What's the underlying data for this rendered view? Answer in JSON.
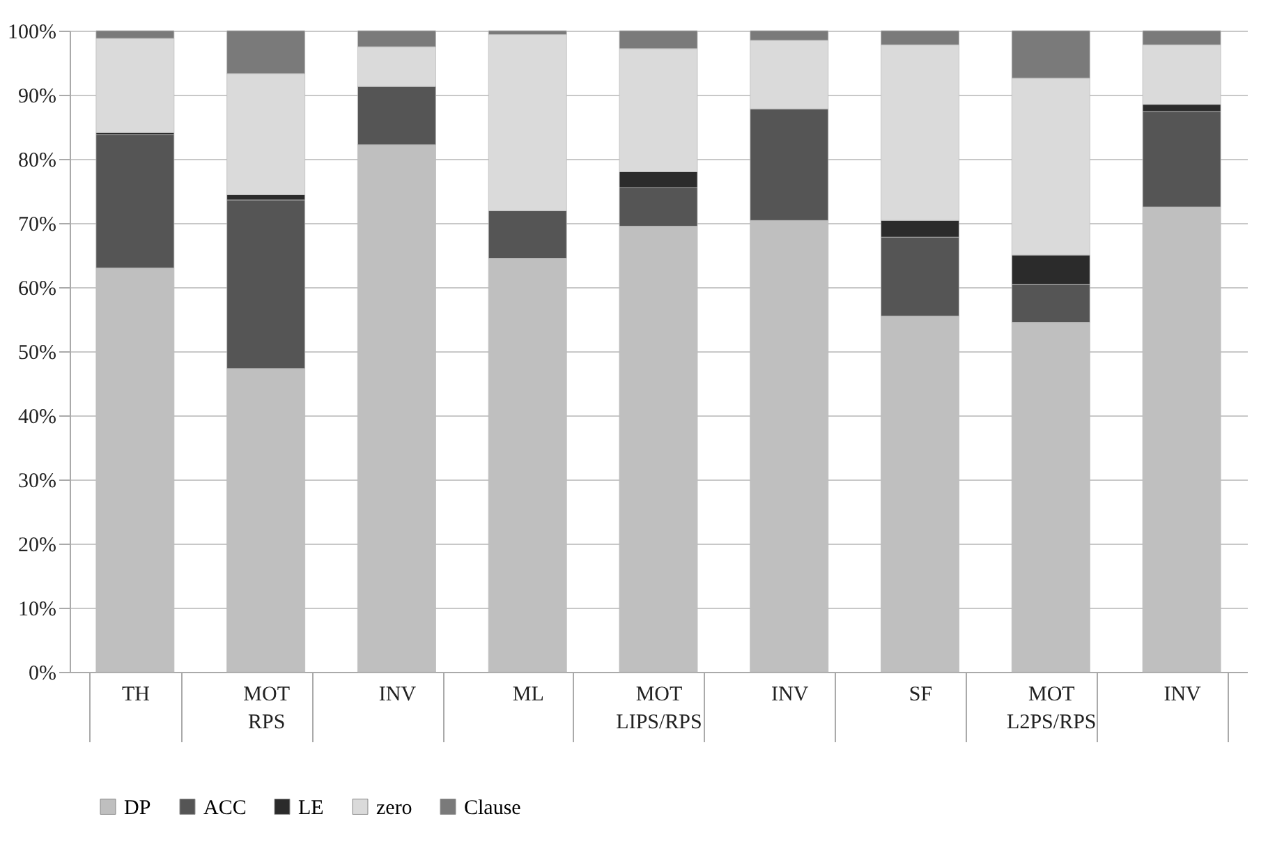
{
  "chart_data": {
    "type": "bar",
    "stacked": true,
    "categories": [
      "TH",
      "MOT\nRPS",
      "INV",
      "ML",
      "MOT\nLIPS/RPS",
      "INV",
      "SF",
      "MOT\nL2PS/RPS",
      "INV"
    ],
    "series": [
      {
        "name": "DP",
        "color": "#bfbfbf",
        "values": [
          63,
          47.3,
          82.2,
          64.5,
          69.5,
          70.4,
          55.5,
          54.5,
          72.5
        ]
      },
      {
        "name": "ACC",
        "color": "#555555",
        "values": [
          20.8,
          26.3,
          9.1,
          7.4,
          6,
          17.4,
          12.3,
          5.9,
          14.9
        ]
      },
      {
        "name": "LE",
        "color": "#2b2b2b",
        "values": [
          0.3,
          0.8,
          0,
          0,
          2.5,
          0,
          2.6,
          4.6,
          1.1
        ]
      },
      {
        "name": "zero",
        "color": "#dadada",
        "values": [
          14.7,
          18.9,
          6.2,
          27.5,
          19.2,
          10.7,
          27.4,
          27.6,
          9.3
        ]
      },
      {
        "name": "Clause",
        "color": "#7a7a7a",
        "values": [
          1.2,
          6.7,
          2.5,
          0.6,
          2.8,
          1.5,
          2.2,
          7.4,
          2.2
        ]
      }
    ],
    "ylim": [
      0,
      100
    ],
    "yticks": [
      {
        "value": 0,
        "label": "0%"
      },
      {
        "value": 10,
        "label": "10%"
      },
      {
        "value": 20,
        "label": "20%"
      },
      {
        "value": 30,
        "label": "30%"
      },
      {
        "value": 40,
        "label": "40%"
      },
      {
        "value": 50,
        "label": "50%"
      },
      {
        "value": 60,
        "label": "60%"
      },
      {
        "value": 70,
        "label": "70%"
      },
      {
        "value": 80,
        "label": "80%"
      },
      {
        "value": 90,
        "label": "90%"
      },
      {
        "value": 100,
        "label": "100%"
      }
    ],
    "grid": "y",
    "legend": "bottom"
  }
}
